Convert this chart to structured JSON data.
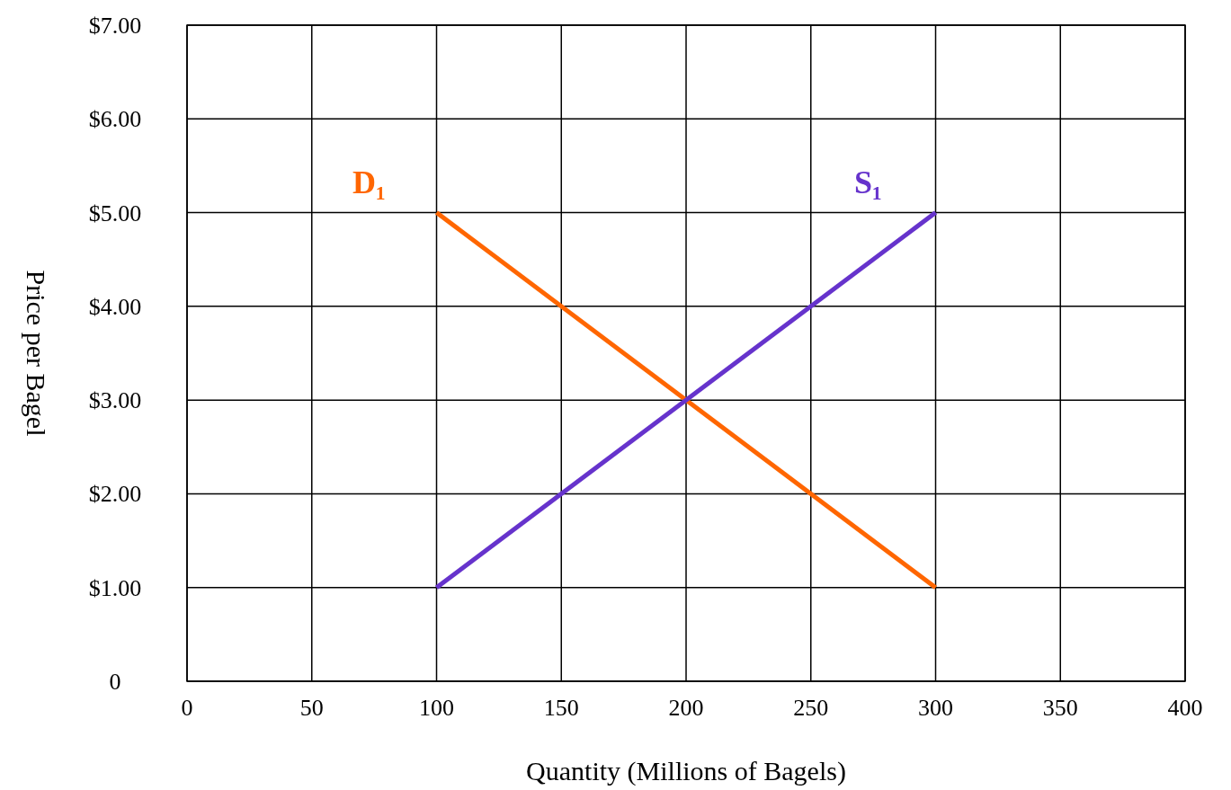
{
  "chart_data": {
    "type": "line",
    "xlabel": "Quantity (Millions of Bagels)",
    "ylabel": "Price per Bagel",
    "xlim": [
      0,
      400
    ],
    "xticks": [
      0,
      50,
      100,
      150,
      200,
      250,
      300,
      350,
      400
    ],
    "ylim": [
      0,
      7
    ],
    "yticks": [
      0,
      {
        "value": 1,
        "label": "$1.00"
      },
      {
        "value": 2,
        "label": "$2.00"
      },
      {
        "value": 3,
        "label": "$3.00"
      },
      {
        "value": 4,
        "label": "$4.00"
      },
      {
        "value": 5,
        "label": "$5.00"
      },
      {
        "value": 6,
        "label": "$6.00"
      },
      {
        "value": 7,
        "label": "$7.00"
      }
    ],
    "grid": true,
    "marker": "none",
    "line_style": "solid",
    "series": [
      {
        "name": "D₁",
        "color": "#ff6600",
        "values": [
          5,
          1
        ]
      },
      {
        "name": "S₁",
        "color": "#6633cc",
        "values": [
          1,
          5
        ]
      }
    ],
    "x": [
      100,
      300
    ]
  }
}
